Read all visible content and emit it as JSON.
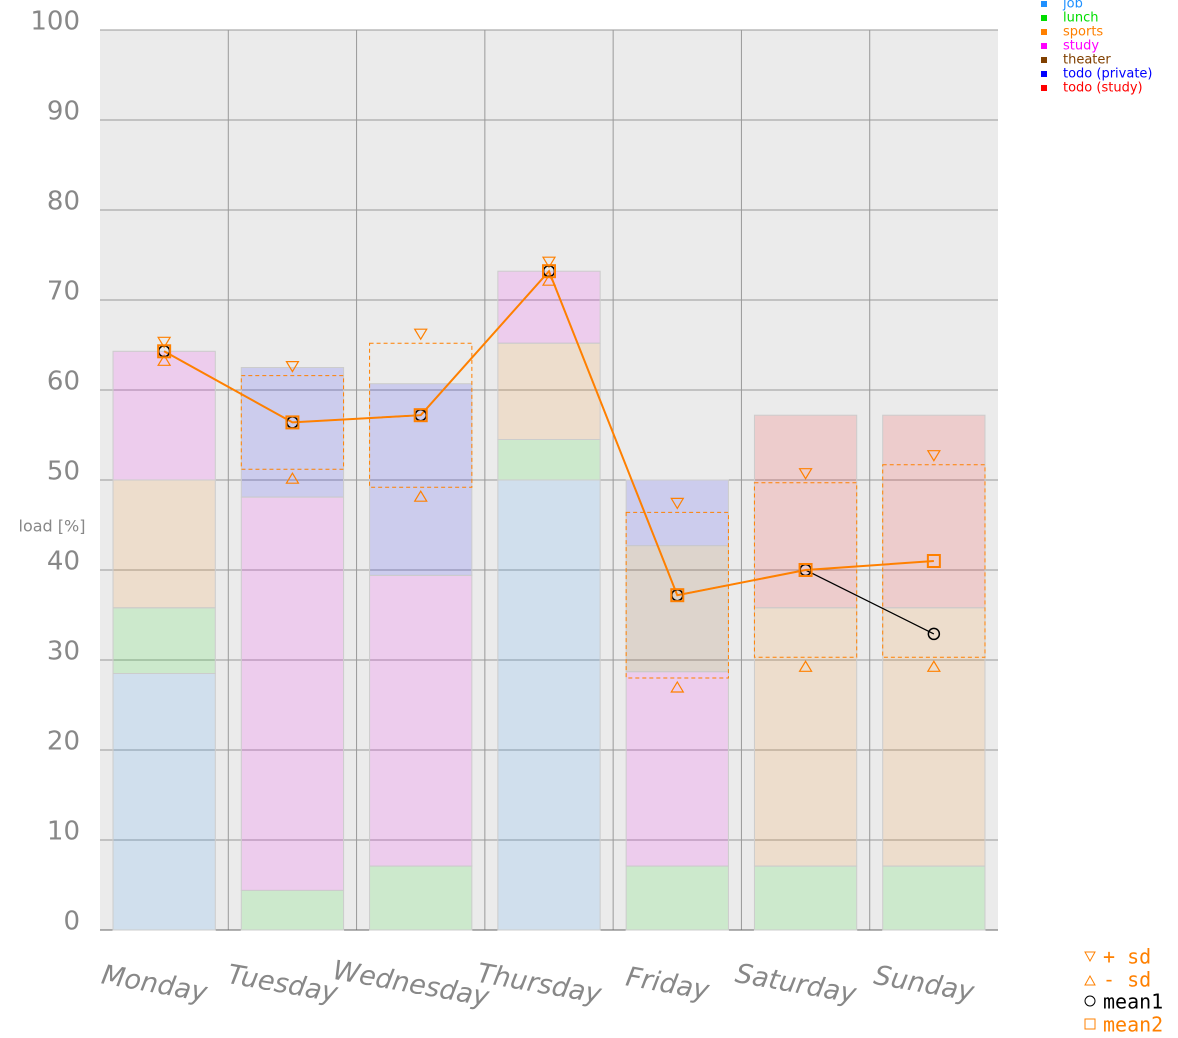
{
  "chart_data": {
    "type": "stacked-bar",
    "y_label": "load [%]",
    "categories": [
      "Monday",
      "Tuesday",
      "Wednesday",
      "Thursday",
      "Friday",
      "Saturday",
      "Sunday"
    ],
    "series": [
      {
        "name": "job",
        "color": "#1e90ff",
        "values": [
          28.5,
          0,
          0,
          50,
          0,
          0,
          0
        ]
      },
      {
        "name": "lunch",
        "color": "#00dd00",
        "values": [
          7.3,
          4.4,
          7.1,
          4.5,
          7.1,
          7.1,
          7.1
        ]
      },
      {
        "name": "sports",
        "color": "#ff8000",
        "values": [
          14.2,
          0,
          0,
          10.7,
          0,
          28.7,
          28.7
        ]
      },
      {
        "name": "study",
        "color": "#ff00ff",
        "values": [
          14.3,
          43.7,
          32.3,
          8,
          21.6,
          0,
          0
        ]
      },
      {
        "name": "theater",
        "color": "#804000",
        "values": [
          0,
          0,
          0,
          0,
          14,
          0,
          0
        ]
      },
      {
        "name": "todo (private)",
        "color": "#0000ff",
        "values": [
          0,
          14.4,
          21.3,
          0,
          7.3,
          0,
          0
        ]
      },
      {
        "name": "todo (study)",
        "color": "#ff0000",
        "values": [
          0,
          0,
          0,
          0,
          0,
          21.4,
          21.4
        ]
      }
    ],
    "means": [
      {
        "name": "mean1",
        "color": "#000000",
        "values": [
          64.3,
          56.4,
          57.2,
          73.2,
          37.2,
          40,
          32.9
        ]
      },
      {
        "name": "mean2",
        "color": "#ff8000",
        "values": [
          64.3,
          56.4,
          57.2,
          73.2,
          37.2,
          40,
          41
        ]
      }
    ],
    "sd": {
      "plus_label": "+ sd",
      "minus_label": "- sd",
      "color": "#ff8000",
      "values": [
        0,
        5.2,
        8,
        0,
        9.2,
        9.7,
        10.7
      ]
    },
    "ylim": [
      0,
      100
    ],
    "yticks": [
      0,
      10,
      20,
      30,
      40,
      50,
      60,
      70,
      80,
      90,
      100
    ],
    "grid": true
  }
}
